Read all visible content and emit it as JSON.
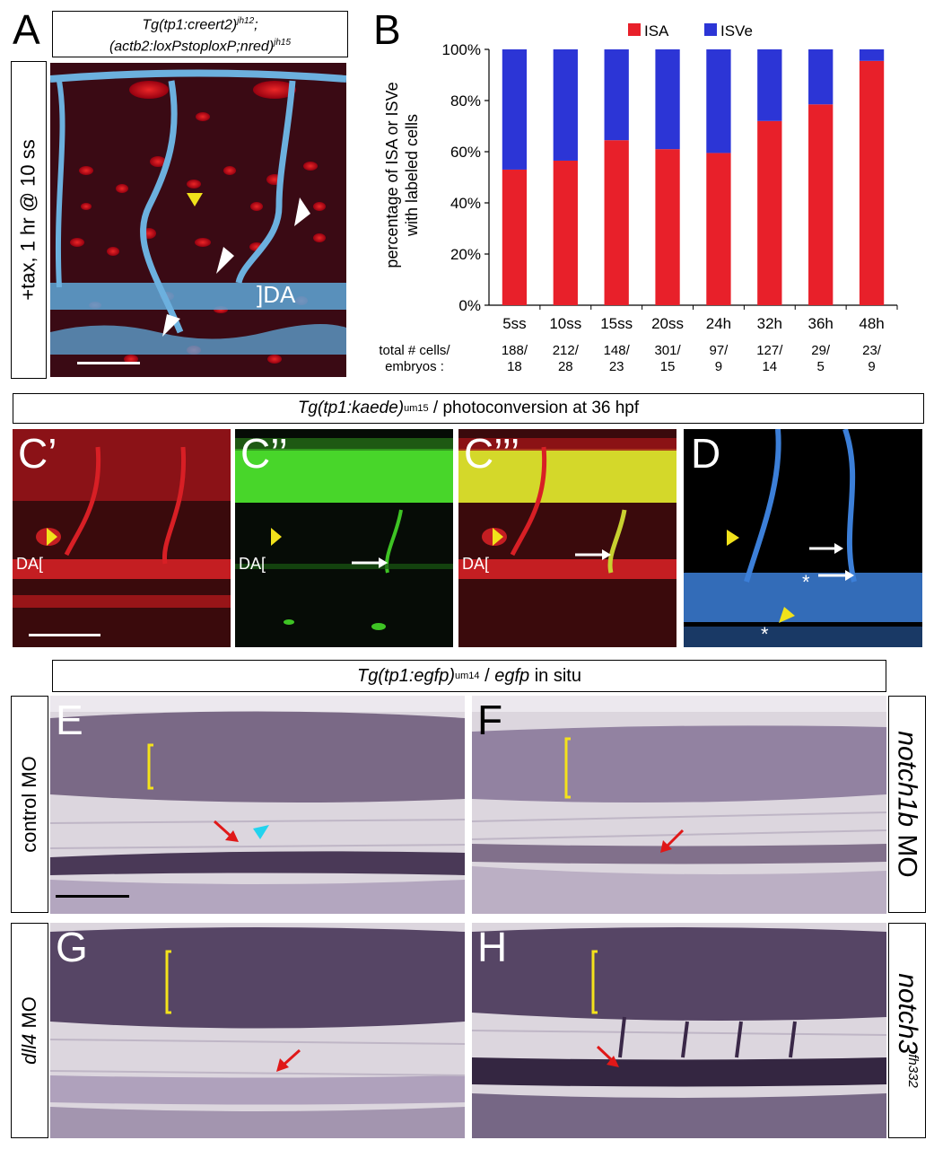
{
  "panelA": {
    "letter": "A",
    "title_line1": "Tg(tp1:creert2)",
    "title_sup1": "jh12",
    "title_sep": ";",
    "title_line2": "(actb2:loxPstoploxP;nred)",
    "title_sup2": "jh15",
    "side_label": "+tax, 1 hr @ 10 ss",
    "da_label": "]DA"
  },
  "panelB": {
    "letter": "B",
    "ylabel_line1": "percentage of ISA or ISVe",
    "ylabel_line2": "with labeled cells",
    "bottom_label_line1": "total # cells/",
    "bottom_label_line2": "embryos :",
    "counts_line1": [
      "188/",
      "212/",
      "148/",
      "301/",
      "97/",
      "127/",
      "29/",
      "23/"
    ],
    "counts_line2": [
      "18",
      "28",
      "23",
      "15",
      "9",
      "14",
      "5",
      "9"
    ]
  },
  "chart_data": {
    "type": "bar",
    "stacked": true,
    "categories": [
      "5ss",
      "10ss",
      "15ss",
      "20ss",
      "24h",
      "32h",
      "36h",
      "48h"
    ],
    "series": [
      {
        "name": "ISA",
        "color": "#e8202a",
        "values": [
          53,
          56.5,
          64.5,
          61,
          59.5,
          72,
          78.5,
          95.5
        ]
      },
      {
        "name": "ISVe",
        "color": "#2c35d6",
        "values": [
          47,
          43.5,
          35.5,
          39,
          40.5,
          28,
          21.5,
          4.5
        ]
      }
    ],
    "yticks": [
      "0%",
      "20%",
      "40%",
      "60%",
      "80%",
      "100%"
    ],
    "ylim": [
      0,
      100
    ],
    "legend": "top",
    "grid": false
  },
  "panelC": {
    "title_gene": "Tg(tp1:kaede)",
    "title_sup": "um15",
    "title_rest": " / photoconversion at 36 hpf",
    "letters": [
      "C’",
      "C’’",
      "C’’’",
      "D"
    ],
    "da_label": "DA["
  },
  "panelE": {
    "title_gene": "Tg(tp1:egfp)",
    "title_sup": "um14",
    "title_sep": " / ",
    "title_gene2": "egfp",
    "title_rest": " in situ",
    "letters": [
      "E",
      "F",
      "G",
      "H"
    ],
    "label_E": "control MO",
    "label_F_gene": "notch1b",
    "label_F_rest": " MO",
    "label_G_gene": "dll4",
    "label_G_rest": " MO",
    "label_H_gene": "notch3",
    "label_H_sup": "fh332"
  },
  "colors": {
    "isa": "#e8202a",
    "isve": "#2c35d6",
    "vessel": "#5fa8d8",
    "yellow_arrow": "#f1e21b",
    "cyan_arrow": "#22d3ee",
    "red_arrow": "#e01818",
    "insitu_bg": "#ddd7df",
    "insitu_stain": "#3a2848"
  }
}
